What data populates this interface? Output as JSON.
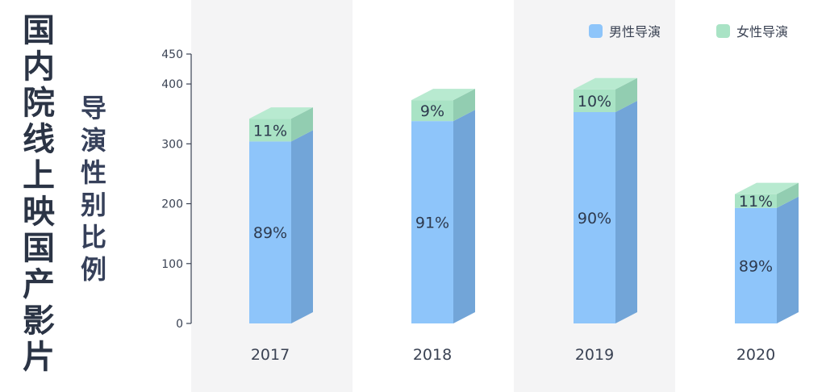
{
  "title_chars": [
    "国",
    "内",
    "院",
    "线",
    "上",
    "映",
    "国",
    "产",
    "影",
    "片"
  ],
  "subtitle_chars": [
    "导",
    "演",
    "性",
    "别",
    "比",
    "例"
  ],
  "colors": {
    "male_front": "#8ec5fa",
    "male_side": "#72a5d8",
    "female_front": "#a9e3c5",
    "female_side": "#92cdb1",
    "female_top": "#b8ead0",
    "band": "#f4f4f5",
    "text": "#3a4253",
    "axis": "#3a4253"
  },
  "chart_data": {
    "type": "bar",
    "stacked": true,
    "categories": [
      "2017",
      "2018",
      "2019",
      "2020"
    ],
    "series": [
      {
        "name": "男性导演",
        "values": [
          304,
          338,
          353,
          193
        ],
        "labels": [
          "89%",
          "91%",
          "90%",
          "89%"
        ]
      },
      {
        "name": "女性导演",
        "values": [
          38,
          35,
          38,
          23
        ],
        "labels": [
          "11%",
          "9%",
          "10%",
          "11%"
        ]
      }
    ],
    "yticks": [
      0,
      100,
      200,
      300,
      400,
      450
    ],
    "ylim": [
      0,
      450
    ],
    "legend_position": "top-right",
    "background_bands": "alternating",
    "grid": false
  }
}
